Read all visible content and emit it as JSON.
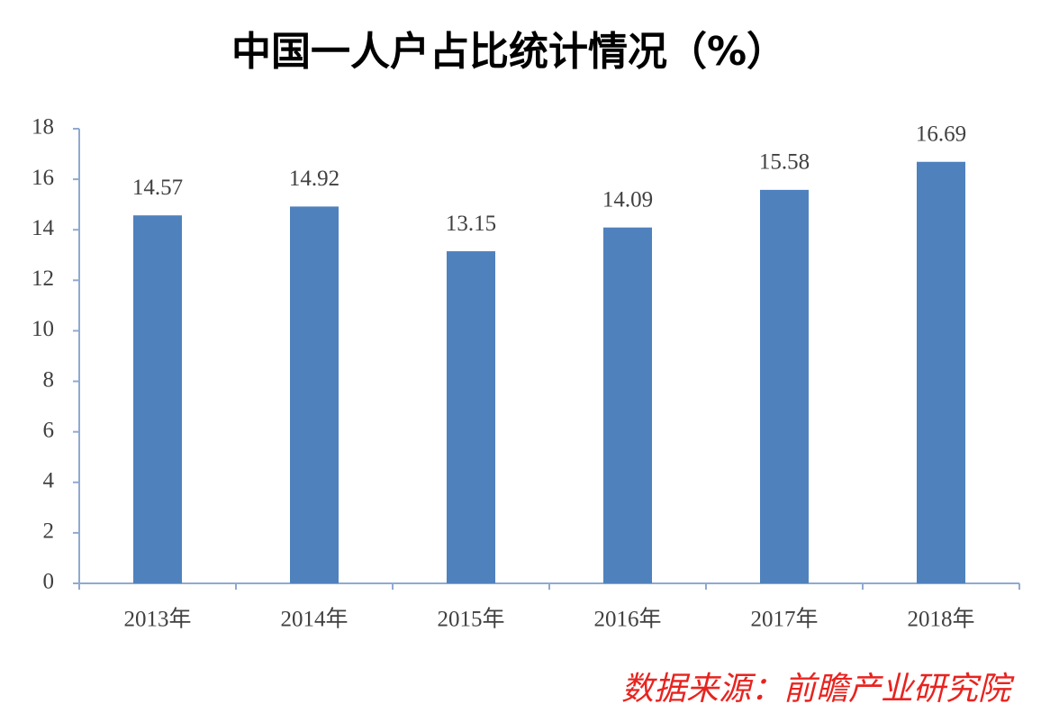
{
  "chart_data": {
    "type": "bar",
    "title": "中国一人户占比统计情况（%）",
    "categories": [
      "2013年",
      "2014年",
      "2015年",
      "2016年",
      "2017年",
      "2018年"
    ],
    "values": [
      14.57,
      14.92,
      13.15,
      14.09,
      15.58,
      16.69
    ],
    "color": "#4f81bd",
    "ylim": [
      0,
      18
    ],
    "yticks": [
      0,
      2,
      4,
      6,
      8,
      10,
      12,
      14,
      16,
      18
    ],
    "source": "数据来源：前瞻产业研究院"
  }
}
